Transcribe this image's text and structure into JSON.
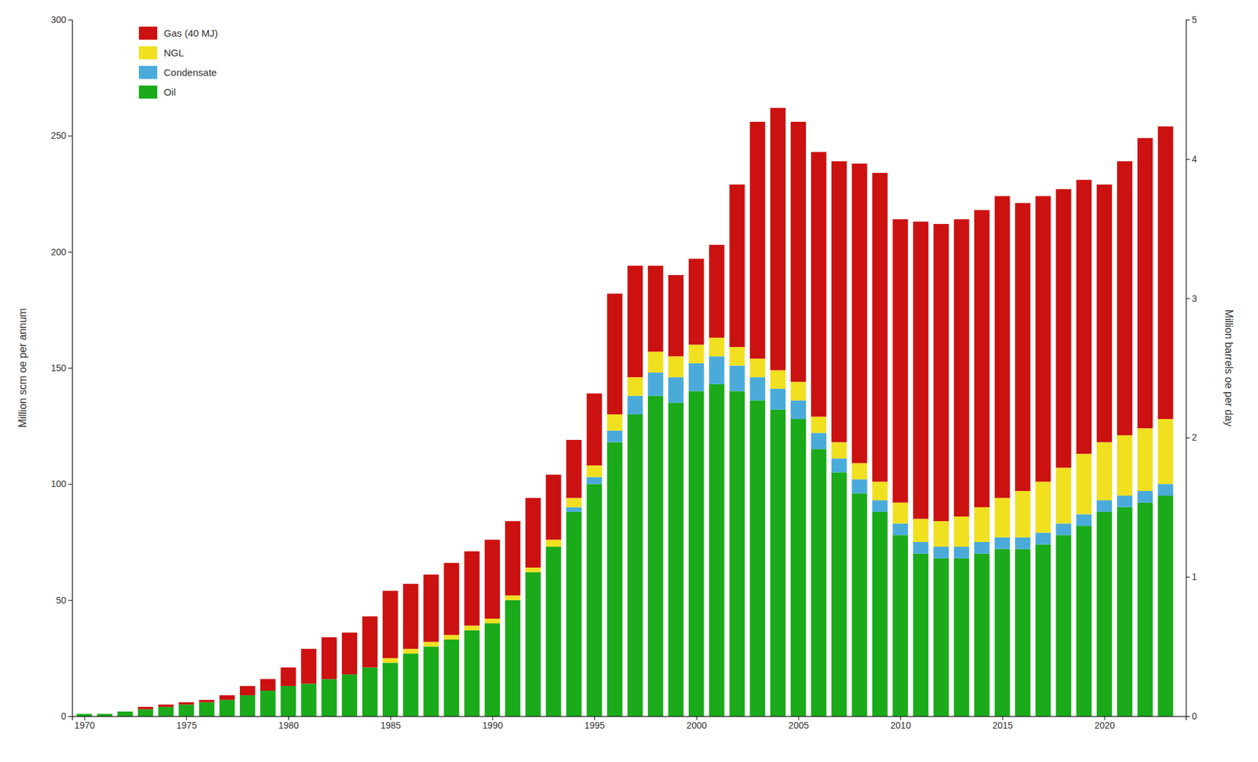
{
  "chart_data": {
    "type": "bar",
    "stacked": true,
    "x": [
      1970,
      1971,
      1972,
      1973,
      1974,
      1975,
      1976,
      1977,
      1978,
      1979,
      1980,
      1981,
      1982,
      1983,
      1984,
      1985,
      1986,
      1987,
      1988,
      1989,
      1990,
      1991,
      1992,
      1993,
      1994,
      1995,
      1996,
      1997,
      1998,
      1999,
      2000,
      2001,
      2002,
      2003,
      2004,
      2005,
      2006,
      2007,
      2008,
      2009,
      2010,
      2011,
      2012,
      2013,
      2014,
      2015,
      2016,
      2017,
      2018,
      2019,
      2020,
      2021,
      2022,
      2023
    ],
    "series": [
      {
        "name": "Oil",
        "color": "#1aaa1a",
        "values": [
          1,
          1,
          2,
          3,
          4,
          5,
          6,
          7,
          9,
          11,
          13,
          14,
          16,
          18,
          21,
          23,
          27,
          30,
          33,
          37,
          40,
          50,
          62,
          73,
          88,
          100,
          118,
          130,
          138,
          135,
          140,
          143,
          140,
          136,
          132,
          128,
          115,
          105,
          96,
          88,
          78,
          70,
          68,
          68,
          70,
          72,
          72,
          74,
          78,
          82,
          88,
          90,
          92,
          95
        ]
      },
      {
        "name": "Condensate",
        "color": "#4aabdb",
        "values": [
          0,
          0,
          0,
          0,
          0,
          0,
          0,
          0,
          0,
          0,
          0,
          0,
          0,
          0,
          0,
          0,
          0,
          0,
          0,
          0,
          0,
          0,
          0,
          0,
          2,
          3,
          5,
          8,
          10,
          11,
          12,
          12,
          11,
          10,
          9,
          8,
          7,
          6,
          6,
          5,
          5,
          5,
          5,
          5,
          5,
          5,
          5,
          5,
          5,
          5,
          5,
          5,
          5,
          5
        ]
      },
      {
        "name": "NGL",
        "color": "#f0e020",
        "values": [
          0,
          0,
          0,
          0,
          0,
          0,
          0,
          0,
          0,
          0,
          0,
          0,
          0,
          0,
          0,
          2,
          2,
          2,
          2,
          2,
          2,
          2,
          2,
          3,
          4,
          5,
          7,
          8,
          9,
          9,
          8,
          8,
          8,
          8,
          8,
          8,
          7,
          7,
          7,
          8,
          9,
          10,
          11,
          13,
          15,
          17,
          20,
          22,
          24,
          26,
          25,
          26,
          27,
          28
        ]
      },
      {
        "name": "Gas (40 MJ)",
        "color": "#cc1111",
        "values": [
          0,
          0,
          0,
          1,
          1,
          1,
          1,
          2,
          4,
          5,
          8,
          15,
          18,
          18,
          22,
          29,
          28,
          29,
          31,
          32,
          34,
          32,
          30,
          28,
          25,
          31,
          52,
          48,
          37,
          35,
          37,
          40,
          70,
          102,
          113,
          112,
          114,
          121,
          129,
          133,
          122,
          128,
          128,
          128,
          128,
          130,
          124,
          123,
          120,
          118,
          111,
          118,
          125,
          126
        ]
      }
    ],
    "xlim": [
      1969.4,
      2024.0
    ],
    "xticks": [
      1970,
      1975,
      1980,
      1985,
      1990,
      1995,
      2000,
      2005,
      2010,
      2015,
      2020
    ],
    "ylabel": "Million scm oe per annum",
    "ylim": [
      0,
      300
    ],
    "yticks": [
      0,
      50,
      100,
      150,
      200,
      250,
      300
    ],
    "y2label": "Million barrels oe per day",
    "y2lim": [
      0,
      5
    ],
    "y2ticks": [
      0,
      1,
      2,
      3,
      4,
      5
    ],
    "legend": "upper left",
    "grid": false
  }
}
